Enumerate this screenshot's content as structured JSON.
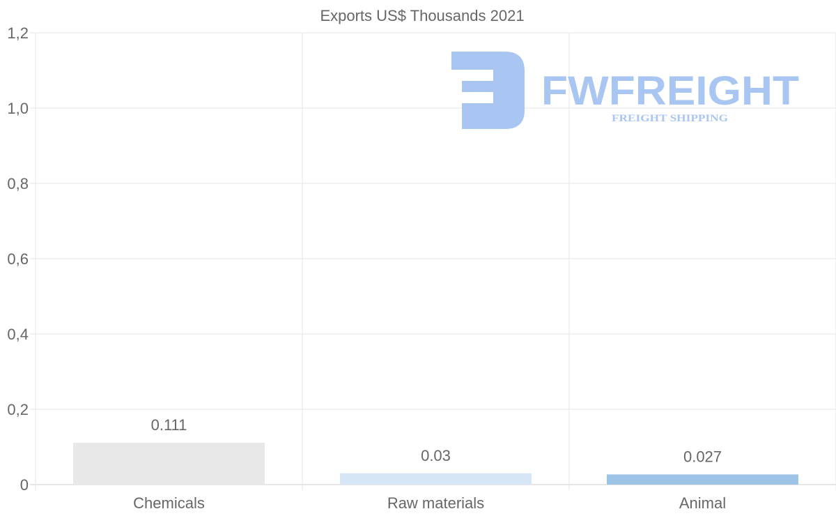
{
  "chart_data": {
    "type": "bar",
    "title": "Exports US$ Thousands 2021",
    "categories": [
      "Chemicals",
      "Raw materials",
      "Animal"
    ],
    "values": [
      0.111,
      0.03,
      0.027
    ],
    "value_labels": [
      "0.111",
      "0.03",
      "0.027"
    ],
    "bar_colors": [
      "#e8e8e8",
      "#d6e6f7",
      "#9dc3e6"
    ],
    "xlabel": "",
    "ylabel": "",
    "ylim": [
      0,
      1.2
    ],
    "yticks": [
      0,
      0.2,
      0.4,
      0.6,
      0.8,
      1.0,
      1.2
    ],
    "ytick_labels": [
      "0",
      "0,2",
      "0,4",
      "0,6",
      "0,8",
      "1,0",
      "1,2"
    ],
    "grid": true,
    "legend": "none"
  },
  "watermark": {
    "brand": "FWFREIGHT",
    "tagline": "FREIGHT SHIPPING",
    "color": "#a9c6f2"
  }
}
